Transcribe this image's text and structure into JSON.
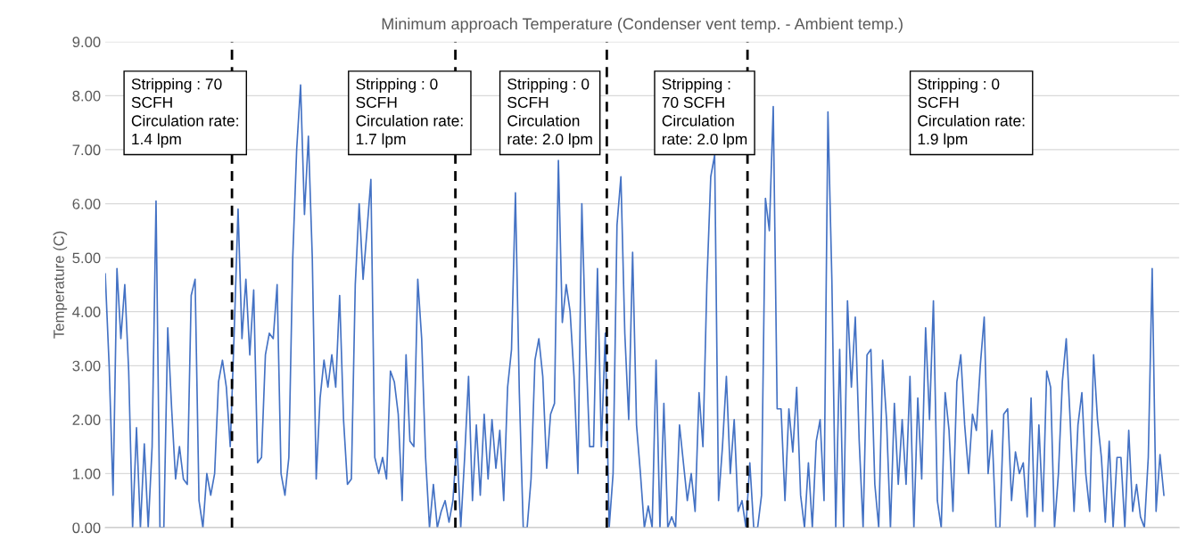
{
  "chart_data": {
    "type": "line",
    "title": "Minimum approach Temperature (Condenser vent temp. - Ambient temp.)",
    "ylabel": "Temperature (C)",
    "categories": [
      null,
      null,
      null,
      null,
      null,
      null,
      null,
      null,
      null,
      null,
      null,
      null,
      null,
      null,
      null,
      null,
      null,
      null,
      null,
      null,
      null,
      null,
      null,
      null,
      null,
      null,
      null,
      null,
      null,
      null,
      null,
      null,
      null,
      null,
      null,
      null,
      null,
      null,
      null,
      null,
      null,
      null,
      null,
      null,
      null,
      null,
      null,
      null,
      null,
      null,
      null,
      null,
      null,
      null,
      null,
      null,
      null,
      null,
      null,
      null,
      null,
      null,
      null,
      null,
      null,
      null,
      null,
      null,
      null,
      null,
      null,
      null,
      null,
      null,
      null,
      null,
      null,
      null,
      null,
      null,
      null,
      null,
      null,
      null,
      null,
      null,
      null,
      null,
      null,
      null,
      null,
      null,
      null,
      null,
      null,
      null,
      null,
      null,
      null,
      null,
      null,
      null,
      null,
      null,
      null,
      null,
      null,
      null,
      null,
      null,
      null,
      null,
      null,
      null,
      null,
      null,
      null,
      null,
      null,
      null,
      null,
      null,
      null,
      null,
      null,
      null,
      null,
      null,
      null,
      null,
      null,
      null,
      null,
      null,
      null,
      null,
      null,
      null,
      null,
      null,
      null,
      null,
      null,
      null,
      null,
      null,
      null,
      null,
      null,
      null,
      null,
      null,
      null,
      null,
      null,
      null,
      null,
      null,
      null,
      null,
      null,
      null,
      null,
      null,
      null,
      null,
      null,
      null,
      null,
      null,
      null,
      null,
      null,
      null,
      null,
      null,
      null,
      null,
      null,
      null,
      null,
      null,
      null,
      null,
      null,
      null,
      null,
      null,
      null,
      null,
      null,
      null,
      null,
      null,
      null,
      null,
      null,
      null,
      null,
      null,
      null,
      null,
      null,
      null,
      null,
      null,
      null,
      null,
      null,
      null,
      null,
      null,
      null,
      null,
      null,
      null,
      null,
      null,
      null,
      null,
      null,
      null,
      null,
      null,
      null,
      null,
      null,
      null,
      null,
      null,
      null,
      null,
      null,
      null,
      null,
      null,
      null,
      null,
      null,
      null,
      null,
      null,
      null,
      null,
      null,
      null,
      null,
      null,
      null,
      null,
      null,
      null,
      null,
      null,
      null,
      null,
      null,
      null,
      null,
      null,
      null,
      null,
      null,
      null,
      null,
      null,
      null,
      null,
      null,
      null,
      null,
      null
    ],
    "series": [
      {
        "color": "#4472c4",
        "values": [
          4.7,
          3.0,
          0.6,
          4.8,
          3.5,
          4.5,
          2.9,
          0,
          1.85,
          0,
          1.55,
          0,
          1.5,
          6.05,
          0,
          0,
          3.7,
          2.2,
          0.9,
          1.5,
          0.9,
          0.8,
          4.3,
          4.6,
          0.5,
          0,
          1.0,
          0.6,
          1.0,
          2.7,
          3.1,
          2.6,
          1.5,
          3.6,
          5.9,
          3.5,
          4.6,
          3.2,
          4.4,
          1.2,
          1.3,
          3.2,
          3.6,
          3.5,
          4.5,
          1.0,
          0.6,
          1.3,
          5.0,
          7.0,
          8.2,
          5.8,
          7.25,
          5.0,
          0.9,
          2.4,
          3.1,
          2.6,
          3.2,
          2.6,
          4.3,
          2.0,
          0.8,
          0.9,
          4.5,
          6.0,
          4.6,
          5.5,
          6.45,
          1.3,
          1.0,
          1.3,
          0.9,
          2.9,
          2.7,
          2.1,
          0.5,
          3.2,
          1.6,
          1.5,
          4.6,
          3.5,
          1.3,
          0,
          0.8,
          0,
          0.3,
          0.5,
          0.1,
          0.5,
          1.6,
          0,
          1.3,
          2.8,
          0.5,
          1.9,
          0.6,
          2.1,
          0.9,
          2.0,
          1.1,
          1.8,
          0.5,
          2.6,
          3.3,
          6.2,
          2.5,
          0,
          0,
          0.9,
          3.1,
          3.5,
          2.8,
          1.1,
          2.1,
          2.3,
          6.8,
          3.8,
          4.5,
          4.0,
          2.8,
          1.0,
          6.0,
          3.4,
          1.5,
          1.5,
          4.8,
          1.5,
          3.6,
          0,
          1.0,
          5.6,
          6.5,
          3.6,
          2.0,
          5.1,
          1.9,
          1.0,
          0,
          0.4,
          0,
          3.1,
          0,
          2.3,
          0,
          0.2,
          0,
          1.9,
          1.2,
          0.5,
          1.0,
          0.3,
          2.5,
          1.5,
          4.5,
          6.5,
          6.9,
          0.5,
          1.5,
          2.8,
          1.0,
          2.0,
          0.3,
          0.5,
          0,
          1.2,
          0,
          0,
          0.6,
          6.1,
          5.5,
          7.8,
          2.2,
          2.2,
          0.5,
          2.2,
          1.4,
          2.6,
          0.6,
          0,
          1.2,
          0,
          1.6,
          2.0,
          0.5,
          7.7,
          4.6,
          0,
          3.3,
          0,
          4.2,
          2.6,
          3.9,
          1.6,
          0,
          3.2,
          3.3,
          0.8,
          0,
          3.1,
          2.0,
          0,
          2.3,
          0.8,
          2.0,
          0.8,
          2.8,
          0,
          2.4,
          0.9,
          3.7,
          2.0,
          4.2,
          0.5,
          0,
          2.5,
          1.8,
          0.3,
          2.7,
          3.2,
          1.9,
          1.0,
          2.1,
          1.8,
          3.0,
          3.9,
          1.0,
          1.8,
          0,
          0,
          2.1,
          2.2,
          0.5,
          1.4,
          1.0,
          1.2,
          0.2,
          2.4,
          0,
          1.9,
          0.3,
          2.9,
          2.6,
          0,
          1.0,
          2.7,
          3.5,
          2.0,
          0.3,
          1.9,
          2.5,
          1.0,
          0.3,
          3.2,
          2.0,
          1.3,
          0.1,
          1.6,
          0,
          1.3,
          1.3,
          0,
          1.8,
          0.3,
          0.8,
          0.2,
          0,
          1.3,
          4.8,
          0.3,
          1.35,
          0.6
        ]
      }
    ],
    "ylim": [
      0,
      9
    ],
    "yticks": [
      {
        "value": 0,
        "label": "0.00"
      },
      {
        "value": 1,
        "label": "1.00"
      },
      {
        "value": 2,
        "label": "2.00"
      },
      {
        "value": 3,
        "label": "3.00"
      },
      {
        "value": 4,
        "label": "4.00"
      },
      {
        "value": 5,
        "label": "5.00"
      },
      {
        "value": 6,
        "label": "6.00"
      },
      {
        "value": 7,
        "label": "7.00"
      },
      {
        "value": 8,
        "label": "8.00"
      },
      {
        "value": 9,
        "label": "9.00"
      }
    ],
    "grid": "y",
    "line_style": "solid",
    "marker": "none",
    "annotations": [
      "Stripping : 70\nSCFH\nCirculation rate:\n1.4 lpm",
      "Stripping : 0\nSCFH\nCirculation rate:\n1.7 lpm",
      "Stripping : 0\nSCFH\nCirculation\nrate: 2.0 lpm",
      "Stripping :\n70 SCFH\nCirculation\nrate: 2.0 lpm",
      "Stripping : 0\nSCFH\nCirculation rate:\n1.9 lpm"
    ]
  }
}
